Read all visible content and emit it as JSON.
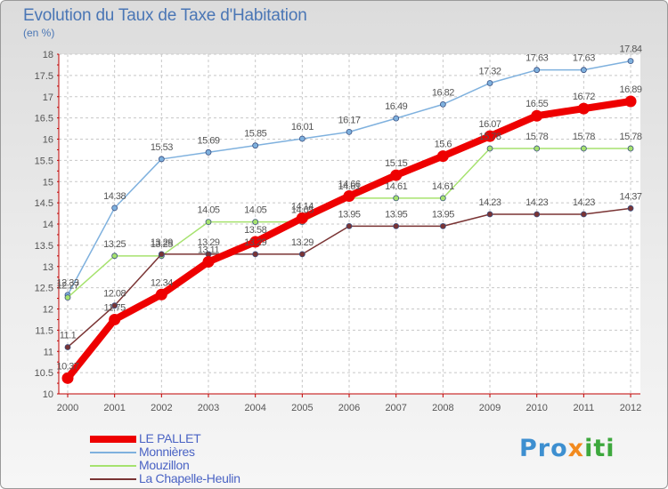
{
  "header": {
    "title": "Evolution du Taux de Taxe d'Habitation",
    "subtitle": "(en %)"
  },
  "logo": {
    "part1": "Pro",
    "part2": "x",
    "part3": "iti"
  },
  "colors": {
    "axis": "#c00000",
    "grid": "#c8c8c8",
    "label": "#555555"
  },
  "chart_data": {
    "type": "line",
    "title": "Evolution du Taux de Taxe d'Habitation",
    "ylabel": "(en %)",
    "xlabel": "",
    "x": [
      "2000",
      "2001",
      "2002",
      "2003",
      "2004",
      "2005",
      "2006",
      "2007",
      "2008",
      "2009",
      "2010",
      "2011",
      "2012"
    ],
    "ylim": [
      10,
      18
    ],
    "yticks": [
      "10",
      "10.5",
      "11",
      "11.5",
      "12",
      "12.5",
      "13",
      "13.5",
      "14",
      "14.5",
      "15",
      "15.5",
      "16",
      "16.5",
      "17",
      "17.5",
      "18"
    ],
    "grid": true,
    "legend_position": "bottom-left",
    "series": [
      {
        "name": "LE PALLET",
        "color": "#ee0000",
        "values": [
          10.37,
          11.75,
          12.34,
          13.11,
          13.58,
          14.14,
          14.66,
          15.15,
          15.6,
          16.07,
          16.55,
          16.72,
          16.89
        ],
        "labels": [
          "10.37",
          "11.75",
          "12.34",
          "13.11",
          "13.58",
          "14.14",
          "14.66",
          "15.15",
          "15.6",
          "16.07",
          "16.55",
          "16.72",
          "16.89"
        ]
      },
      {
        "name": "Monnières",
        "color": "#7fb1de",
        "values": [
          12.33,
          14.38,
          15.53,
          15.69,
          15.85,
          16.01,
          16.17,
          16.49,
          16.82,
          17.32,
          17.63,
          17.63,
          17.84
        ],
        "labels": [
          "12.33",
          "14.38",
          "15.53",
          "15.69",
          "15.85",
          "16.01",
          "16.17",
          "16.49",
          "16.82",
          "17.32",
          "17.63",
          "17.63",
          "17.84"
        ]
      },
      {
        "name": "Mouzillon",
        "color": "#a6e26e",
        "values": [
          12.27,
          13.25,
          13.25,
          14.05,
          14.05,
          14.05,
          14.61,
          14.61,
          14.61,
          15.78,
          15.78,
          15.78,
          15.78
        ],
        "labels": [
          "12.27",
          "13.25",
          "13.25",
          "14.05",
          "14.05",
          "14.05",
          "14.61",
          "14.61",
          "14.61",
          "15.78",
          "15.78",
          "15.78",
          "15.78"
        ]
      },
      {
        "name": "La Chapelle-Heulin",
        "color": "#7a3434",
        "values": [
          11.1,
          12.08,
          13.29,
          13.29,
          13.29,
          13.29,
          13.95,
          13.95,
          13.95,
          14.23,
          14.23,
          14.23,
          14.37
        ],
        "labels": [
          "11.1",
          "12.08",
          "13.29",
          "13.29",
          "13.29",
          "13.29",
          "13.95",
          "13.95",
          "13.95",
          "14.23",
          "14.23",
          "14.23",
          "14.37"
        ]
      }
    ]
  }
}
